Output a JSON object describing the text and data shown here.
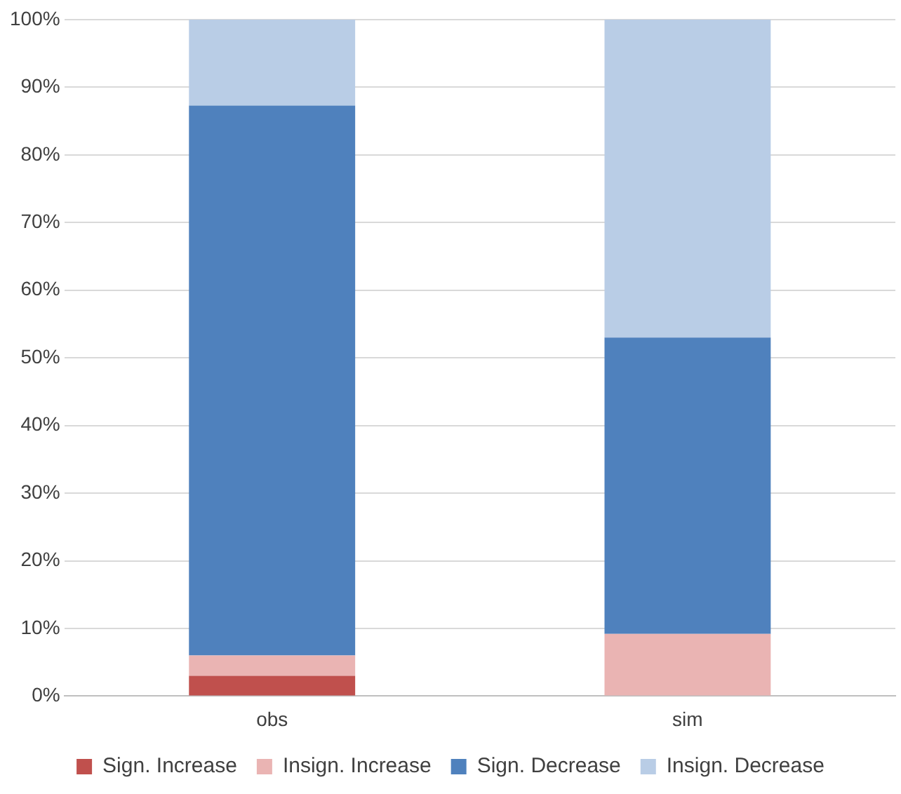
{
  "chart_data": {
    "type": "bar",
    "stacked": true,
    "categories": [
      "obs",
      "sim"
    ],
    "series": [
      {
        "name": "Sign. Increase",
        "color": "#c0504d",
        "values": [
          3,
          0
        ]
      },
      {
        "name": "Insign. Increase",
        "color": "#eab4b3",
        "values": [
          3,
          9.2
        ]
      },
      {
        "name": "Sign. Decrease",
        "color": "#4f81bd",
        "values": [
          81.3,
          43.8
        ]
      },
      {
        "name": "Insign. Decrease",
        "color": "#b9cde6",
        "values": [
          12.7,
          47
        ]
      }
    ],
    "ylim": [
      0,
      100
    ],
    "yticks": [
      {
        "value": 0,
        "label": "0%"
      },
      {
        "value": 10,
        "label": "10%"
      },
      {
        "value": 20,
        "label": "20%"
      },
      {
        "value": 30,
        "label": "30%"
      },
      {
        "value": 40,
        "label": "40%"
      },
      {
        "value": 50,
        "label": "50%"
      },
      {
        "value": 60,
        "label": "60%"
      },
      {
        "value": 70,
        "label": "70%"
      },
      {
        "value": 80,
        "label": "80%"
      },
      {
        "value": 90,
        "label": "90%"
      },
      {
        "value": 100,
        "label": "100%"
      }
    ],
    "grid": "y",
    "legend": "bottom"
  }
}
